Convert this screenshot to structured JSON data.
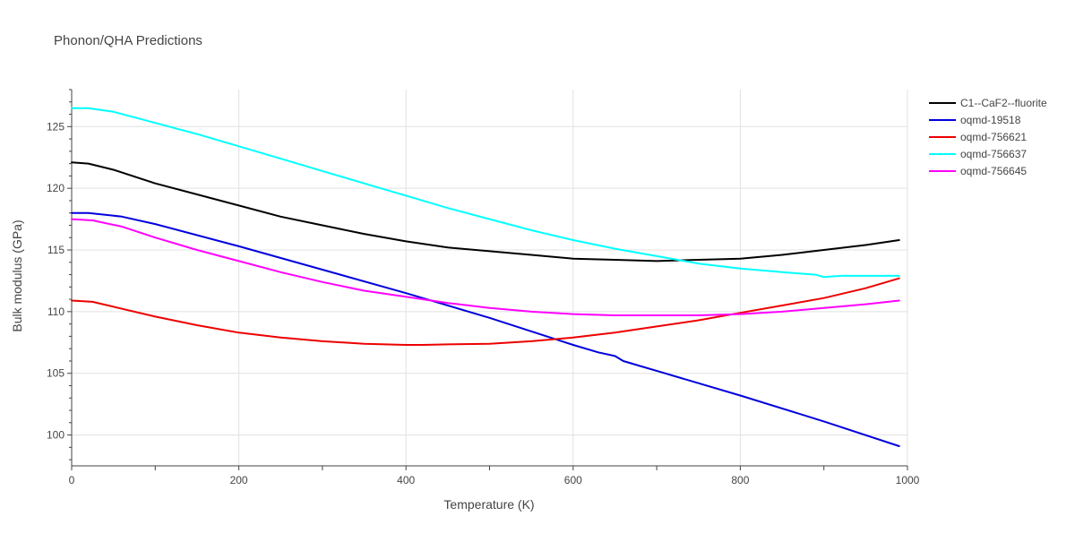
{
  "chart_data": {
    "type": "line",
    "title": "Phonon/QHA Predictions",
    "xlabel": "Temperature (K)",
    "ylabel": "Bulk modulus (GPa)",
    "xlim": [
      0,
      1000
    ],
    "ylim": [
      97.5,
      128
    ],
    "xticks": [
      0,
      200,
      400,
      600,
      800,
      1000
    ],
    "yticks": [
      100,
      105,
      110,
      115,
      120,
      125
    ],
    "legend_position": "top-right",
    "series": [
      {
        "name": "C1--CaF2--fluorite",
        "color": "#000000",
        "x": [
          0,
          20,
          50,
          100,
          150,
          200,
          250,
          300,
          350,
          400,
          450,
          500,
          550,
          600,
          650,
          700,
          750,
          800,
          850,
          900,
          950,
          990
        ],
        "y": [
          122.1,
          122.0,
          121.5,
          120.4,
          119.5,
          118.6,
          117.7,
          117.0,
          116.3,
          115.7,
          115.2,
          114.9,
          114.6,
          114.3,
          114.2,
          114.1,
          114.2,
          114.3,
          114.6,
          115.0,
          115.4,
          115.8
        ]
      },
      {
        "name": "oqmd-19518",
        "color": "#0000dd",
        "x": [
          0,
          20,
          60,
          100,
          200,
          300,
          400,
          500,
          600,
          630,
          650,
          660,
          680,
          710,
          720,
          800,
          900,
          990
        ],
        "y": [
          118.0,
          118.0,
          117.7,
          117.1,
          115.3,
          113.4,
          111.5,
          109.5,
          107.3,
          106.7,
          106.4,
          106.0,
          105.6,
          105.0,
          104.8,
          103.2,
          101.1,
          99.1
        ]
      },
      {
        "name": "oqmd-756621",
        "color": "#ee0000",
        "x": [
          0,
          25,
          50,
          100,
          150,
          200,
          250,
          300,
          350,
          400,
          420,
          450,
          500,
          550,
          600,
          650,
          700,
          750,
          800,
          850,
          900,
          950,
          990
        ],
        "y": [
          110.9,
          110.8,
          110.4,
          109.6,
          108.9,
          108.3,
          107.9,
          107.6,
          107.4,
          107.3,
          107.3,
          107.35,
          107.4,
          107.6,
          107.9,
          108.3,
          108.8,
          109.3,
          109.9,
          110.5,
          111.1,
          111.9,
          112.7
        ]
      },
      {
        "name": "oqmd-756637",
        "color": "#00ffff",
        "x": [
          0,
          20,
          50,
          100,
          150,
          200,
          250,
          300,
          350,
          400,
          450,
          500,
          550,
          600,
          650,
          700,
          750,
          800,
          850,
          890,
          900,
          920,
          950,
          990
        ],
        "y": [
          126.5,
          126.5,
          126.2,
          125.3,
          124.4,
          123.4,
          122.4,
          121.4,
          120.4,
          119.4,
          118.4,
          117.5,
          116.6,
          115.8,
          115.1,
          114.5,
          113.9,
          113.5,
          113.2,
          113.0,
          112.8,
          112.9,
          112.9,
          112.9
        ]
      },
      {
        "name": "oqmd-756645",
        "color": "#ff00ff",
        "x": [
          0,
          25,
          60,
          100,
          150,
          200,
          250,
          300,
          350,
          400,
          450,
          500,
          550,
          600,
          650,
          700,
          750,
          800,
          850,
          900,
          950,
          990
        ],
        "y": [
          117.5,
          117.4,
          116.9,
          116.0,
          115.0,
          114.1,
          113.2,
          112.4,
          111.7,
          111.2,
          110.7,
          110.3,
          110.0,
          109.8,
          109.7,
          109.7,
          109.7,
          109.8,
          110.0,
          110.3,
          110.6,
          110.9
        ]
      }
    ]
  }
}
